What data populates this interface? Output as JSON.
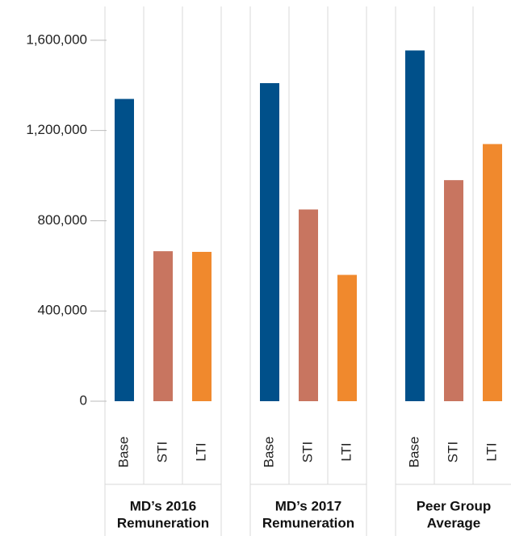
{
  "chart_data": {
    "type": "bar",
    "categories": [
      [
        "MD’s 2016",
        "Remuneration"
      ],
      [
        "MD’s 2017",
        "Remuneration"
      ],
      [
        "Peer Group",
        "Average"
      ]
    ],
    "series": [
      {
        "name": "Base",
        "color": "#00508a",
        "values": [
          1340000,
          1410000,
          1555000
        ]
      },
      {
        "name": "STI",
        "color": "#c87560",
        "values": [
          665000,
          850000,
          980000
        ]
      },
      {
        "name": "LTI",
        "color": "#f0892d",
        "values": [
          662000,
          560000,
          1140000
        ]
      }
    ],
    "ylim": [
      0,
      1750000
    ],
    "yticks": [
      0,
      {
        "value": 400000,
        "label": "400,000"
      },
      {
        "value": 800000,
        "label": "800,000"
      },
      {
        "value": 1200000,
        "label": "1,200,000"
      },
      {
        "value": 1600000,
        "label": "1,600,000"
      }
    ]
  }
}
